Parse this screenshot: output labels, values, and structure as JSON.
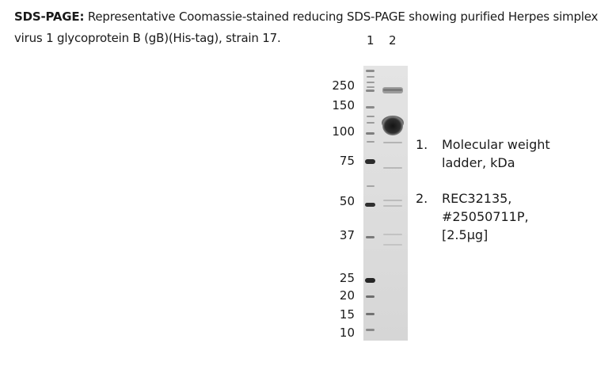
{
  "caption": {
    "heading": "SDS-PAGE:",
    "text": "Representative Coomassie-stained reducing SDS-PAGE showing purified Herpes simplex virus 1 glycoprotein B (gB)(His-tag), strain 17."
  },
  "lanes": [
    "1",
    "2"
  ],
  "markers": [
    "250",
    "150",
    "100",
    "75",
    "50",
    "37",
    "25",
    "20",
    "15",
    "10"
  ],
  "legend": [
    {
      "num": "1.",
      "lines": [
        "Molecular weight",
        "ladder, kDa"
      ]
    },
    {
      "num": "2.",
      "lines": [
        "REC32135,",
        "#25050711P,",
        "[2.5µg]"
      ]
    }
  ]
}
